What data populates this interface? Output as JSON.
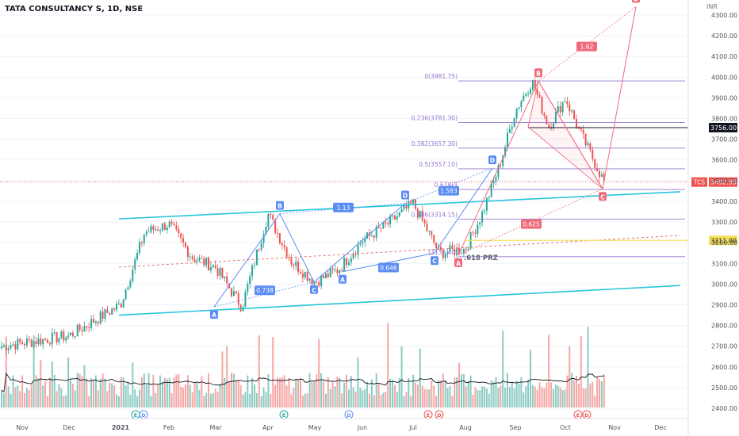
{
  "chart_title": "TATA CONSULTANCY S, 1D, NSE",
  "currency": "INR",
  "colors": {
    "up": "#26a69a",
    "down": "#ef5350",
    "vol_up": "#8ccbc3",
    "vol_down": "#f7a6a4",
    "channel": "#26c6da",
    "fib": "#9575cd",
    "harmonic_blue": "#5c8ef2",
    "harmonic_red": "#ef6b7b",
    "trend_dotted": "#e57373",
    "prz": "#f5e05b",
    "black_line": "#131722"
  },
  "chart_data": {
    "type": "candlestick",
    "symbol": "TCS",
    "timeframe": "1D",
    "exchange": "NSE",
    "ylim": [
      2330,
      4340
    ],
    "y_ticks": [
      "4300.00",
      "4200.00",
      "4100.00",
      "4000.00",
      "3900.00",
      "3800.00",
      "3700.00",
      "3600.00",
      "3500.00",
      "3400.00",
      "3300.00",
      "3200.00",
      "3100.00",
      "3000.00",
      "2900.00",
      "2800.00",
      "2700.00",
      "2600.00",
      "2500.00",
      "2400.00"
    ],
    "x_ticks": [
      "Nov",
      "Dec",
      "2021",
      "Feb",
      "Mar",
      "Apr",
      "May",
      "Jun",
      "Jul",
      "Aug",
      "Sep",
      "Oct",
      "Nov",
      "Dec"
    ],
    "price_path": [
      [
        "Nov",
        2700
      ],
      [
        "Dec",
        2750
      ],
      [
        "2021",
        2900
      ],
      [
        "2021",
        3250
      ],
      [
        "Feb",
        3290
      ],
      [
        "Feb",
        3130
      ],
      [
        "Mar",
        3080
      ],
      [
        "Mar",
        2890
      ],
      [
        "Apr",
        3340
      ],
      [
        "Apr",
        3110
      ],
      [
        "May",
        3010
      ],
      [
        "May",
        3070
      ],
      [
        "Jun",
        3210
      ],
      [
        "Jun",
        3290
      ],
      [
        "Jul",
        3390
      ],
      [
        "Jul",
        3150
      ],
      [
        "Aug",
        3170
      ],
      [
        "Aug",
        3340
      ],
      [
        "Aug",
        3560
      ],
      [
        "Sep",
        3840
      ],
      [
        "Sep",
        3981
      ],
      [
        "Sep",
        3760
      ],
      [
        "Oct",
        3900
      ],
      [
        "Oct",
        3750
      ],
      [
        "Oct",
        3493
      ]
    ],
    "price_labels": [
      {
        "text": "3756.00",
        "value": 3756,
        "style": "black"
      },
      {
        "text": "TCS",
        "value": 3492.95,
        "style": "red-tag"
      },
      {
        "text": "3492.95",
        "value": 3492.95,
        "style": "red"
      },
      {
        "text": "3211.00",
        "value": 3211,
        "style": "yellow"
      }
    ],
    "fib_levels": [
      {
        "label": "0(3981.75)",
        "value": 3981.75
      },
      {
        "label": "0.236(3781.30)",
        "value": 3781.3
      },
      {
        "label": "0.382(3657.30)",
        "value": 3657.3
      },
      {
        "label": "0.5(3557.10)",
        "value": 3557.1
      },
      {
        "label": "0.618(3",
        "value": 3456.9
      },
      {
        "label": "0.786(3314.15)",
        "value": 3314.15
      },
      {
        "label": "(3132.40)",
        "value": 3132.4
      }
    ],
    "harmonic_points": [
      {
        "pattern": "blue1",
        "label": "A",
        "x": "Mar",
        "y": 2890
      },
      {
        "pattern": "blue1",
        "label": "B",
        "x": "Apr",
        "y": 3340
      },
      {
        "pattern": "blue1",
        "label": "C",
        "x": "May",
        "y": 3010
      },
      {
        "pattern": "blue1",
        "label": "D",
        "x": "Jul",
        "y": 3390
      },
      {
        "pattern": "blue2",
        "label": "A",
        "x": "May",
        "y": 3060
      },
      {
        "pattern": "blue2",
        "label": "C",
        "x": "Jul",
        "y": 3150
      },
      {
        "pattern": "blue2",
        "label": "D",
        "x": "Aug",
        "y": 3560
      },
      {
        "pattern": "red",
        "label": "A",
        "x": "Aug",
        "y": 3140
      },
      {
        "pattern": "red",
        "label": "B",
        "x": "Sep",
        "y": 3981
      },
      {
        "pattern": "red",
        "label": "C",
        "x": "Oct",
        "y": 3460
      },
      {
        "pattern": "red",
        "label": "D",
        "x": "Nov",
        "y": 4340
      }
    ],
    "ratio_labels": [
      "0.738",
      "1.13",
      "0.646",
      "1.583",
      "1.62",
      "0.625"
    ],
    "annotations": [
      ".618 PRZ"
    ],
    "events": [
      "E",
      "D",
      "E",
      "D",
      "E",
      "D",
      "E",
      "D"
    ]
  }
}
